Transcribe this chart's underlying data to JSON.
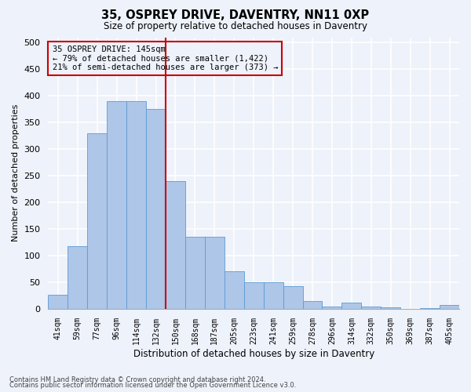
{
  "title1": "35, OSPREY DRIVE, DAVENTRY, NN11 0XP",
  "title2": "Size of property relative to detached houses in Daventry",
  "xlabel": "Distribution of detached houses by size in Daventry",
  "ylabel": "Number of detached properties",
  "categories": [
    "41sqm",
    "59sqm",
    "77sqm",
    "96sqm",
    "114sqm",
    "132sqm",
    "150sqm",
    "168sqm",
    "187sqm",
    "205sqm",
    "223sqm",
    "241sqm",
    "259sqm",
    "278sqm",
    "296sqm",
    "314sqm",
    "332sqm",
    "350sqm",
    "369sqm",
    "387sqm",
    "405sqm"
  ],
  "values": [
    27,
    118,
    330,
    390,
    390,
    375,
    240,
    135,
    135,
    70,
    50,
    50,
    43,
    15,
    5,
    12,
    5,
    3,
    0,
    2,
    7
  ],
  "bar_color": "#aec6e8",
  "bar_edge_color": "#5b9bd5",
  "background_color": "#eef2fa",
  "grid_color": "#ffffff",
  "vline_color": "#cc0000",
  "annotation_line1": "35 OSPREY DRIVE: 145sqm",
  "annotation_line2": "← 79% of detached houses are smaller (1,422)",
  "annotation_line3": "21% of semi-detached houses are larger (373) →",
  "annotation_box_color": "#cc0000",
  "footer1": "Contains HM Land Registry data © Crown copyright and database right 2024.",
  "footer2": "Contains public sector information licensed under the Open Government Licence v3.0.",
  "ylim": [
    0,
    510
  ],
  "yticks": [
    0,
    50,
    100,
    150,
    200,
    250,
    300,
    350,
    400,
    450,
    500
  ]
}
